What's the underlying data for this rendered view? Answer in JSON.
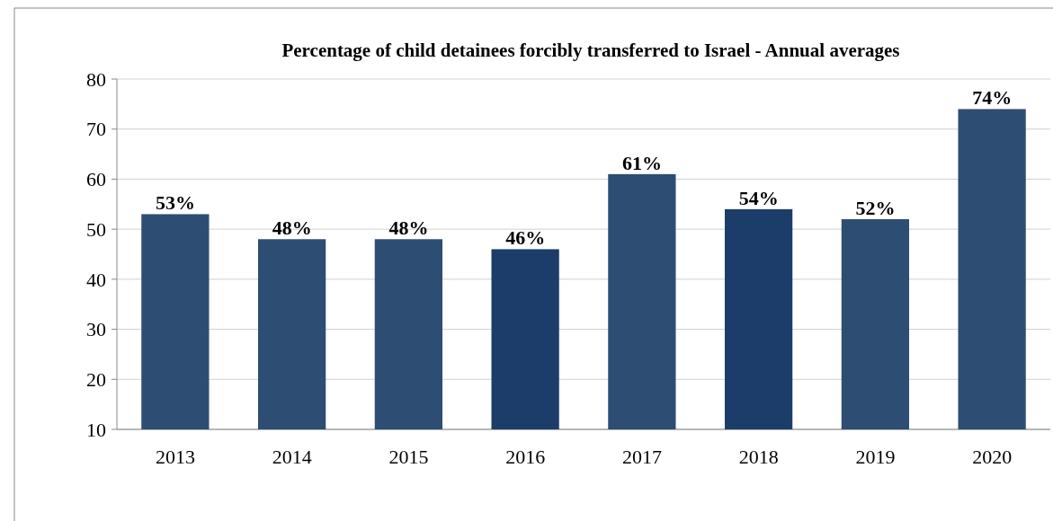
{
  "chart_data": {
    "type": "bar",
    "title": "Percentage of child detainees forcibly transferred to Israel - Annual averages",
    "categories": [
      "2013",
      "2014",
      "2015",
      "2016",
      "2017",
      "2018",
      "2019",
      "2020"
    ],
    "values": [
      53,
      48,
      48,
      46,
      61,
      54,
      52,
      74
    ],
    "value_labels": [
      "53%",
      "48%",
      "48%",
      "46%",
      "61%",
      "54%",
      "52%",
      "74%"
    ],
    "colors": [
      "#2e4d73",
      "#2e4d73",
      "#2e4d73",
      "#1c3d6a",
      "#2e4d73",
      "#1c3d6a",
      "#2e4d73",
      "#2e4d73"
    ],
    "ylim": [
      10,
      80
    ],
    "yticks": [
      10,
      20,
      30,
      40,
      50,
      60,
      70,
      80
    ],
    "grid": "y"
  }
}
